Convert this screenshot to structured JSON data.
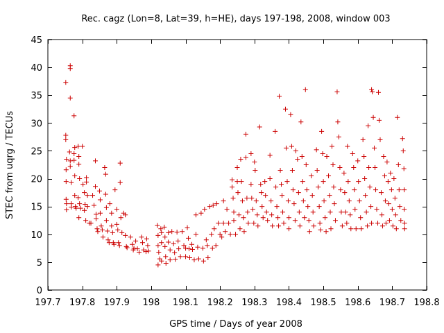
{
  "chart_data": {
    "type": "scatter",
    "title": "Rec. cagz (Lon=8, Lat=39, h=HE), days 197-198, 2008, window 003",
    "xlabel": "GPS time / Days of year 2008",
    "ylabel": "STEC from uqrg / TECUs",
    "xlim": [
      197.7,
      198.8
    ],
    "ylim": [
      0,
      45
    ],
    "x_ticks": [
      "197.7",
      "197.8",
      "197.9",
      "198",
      "198.1",
      "198.2",
      "198.3",
      "198.4",
      "198.5",
      "198.6",
      "198.7",
      "198.8"
    ],
    "y_ticks": [
      "0",
      "5",
      "10",
      "15",
      "20",
      "25",
      "30",
      "35",
      "40",
      "45"
    ],
    "grid": false,
    "marker": "plus",
    "color": "#cc0000",
    "points": [
      [
        197.752,
        37.3
      ],
      [
        197.752,
        27.8
      ],
      [
        197.752,
        27.0
      ],
      [
        197.754,
        23.5
      ],
      [
        197.753,
        21.6
      ],
      [
        197.753,
        19.5
      ],
      [
        197.753,
        16.3
      ],
      [
        197.754,
        15.5
      ],
      [
        197.754,
        14.4
      ],
      [
        197.765,
        40.3
      ],
      [
        197.765,
        39.8
      ],
      [
        197.765,
        34.5
      ],
      [
        197.763,
        24.8
      ],
      [
        197.765,
        23.2
      ],
      [
        197.765,
        22.2
      ],
      [
        197.768,
        19.3
      ],
      [
        197.768,
        15.5
      ],
      [
        197.768,
        14.9
      ],
      [
        197.776,
        31.3
      ],
      [
        197.778,
        25.6
      ],
      [
        197.776,
        24.5
      ],
      [
        197.776,
        23.3
      ],
      [
        197.778,
        20.5
      ],
      [
        197.778,
        17.0
      ],
      [
        197.78,
        15.0
      ],
      [
        197.782,
        14.7
      ],
      [
        197.788,
        25.8
      ],
      [
        197.79,
        24.0
      ],
      [
        197.79,
        22.6
      ],
      [
        197.792,
        20.0
      ],
      [
        197.788,
        16.6
      ],
      [
        197.792,
        15.5
      ],
      [
        197.795,
        14.7
      ],
      [
        197.79,
        13.0
      ],
      [
        197.8,
        25.8
      ],
      [
        197.802,
        19.0
      ],
      [
        197.806,
        17.5
      ],
      [
        197.808,
        15.4
      ],
      [
        197.806,
        14.3
      ],
      [
        197.81,
        12.5
      ],
      [
        197.812,
        20.2
      ],
      [
        197.812,
        19.4
      ],
      [
        197.815,
        17.0
      ],
      [
        197.815,
        15.0
      ],
      [
        197.82,
        12.0
      ],
      [
        197.825,
        12.0
      ],
      [
        197.83,
        17.0
      ],
      [
        197.834,
        15.2
      ],
      [
        197.838,
        23.2
      ],
      [
        197.838,
        18.6
      ],
      [
        197.84,
        13.6
      ],
      [
        197.84,
        12.8
      ],
      [
        197.843,
        11.0
      ],
      [
        197.845,
        10.5
      ],
      [
        197.85,
        17.8
      ],
      [
        197.852,
        16.2
      ],
      [
        197.852,
        13.8
      ],
      [
        197.855,
        11.5
      ],
      [
        197.858,
        10.8
      ],
      [
        197.86,
        9.5
      ],
      [
        197.865,
        22.0
      ],
      [
        197.868,
        20.8
      ],
      [
        197.868,
        17.2
      ],
      [
        197.87,
        14.8
      ],
      [
        197.87,
        12.5
      ],
      [
        197.873,
        10.6
      ],
      [
        197.875,
        9.0
      ],
      [
        197.878,
        8.5
      ],
      [
        197.88,
        15.5
      ],
      [
        197.885,
        13.8
      ],
      [
        197.885,
        11.5
      ],
      [
        197.888,
        10.3
      ],
      [
        197.89,
        8.5
      ],
      [
        197.892,
        8.2
      ],
      [
        197.895,
        18.0
      ],
      [
        197.9,
        14.5
      ],
      [
        197.9,
        11.8
      ],
      [
        197.903,
        10.8
      ],
      [
        197.905,
        8.5
      ],
      [
        197.908,
        8.0
      ],
      [
        197.91,
        22.8
      ],
      [
        197.91,
        19.3
      ],
      [
        197.912,
        13.0
      ],
      [
        197.915,
        10.3
      ],
      [
        197.92,
        13.8
      ],
      [
        197.925,
        13.5
      ],
      [
        197.925,
        9.8
      ],
      [
        197.928,
        7.8
      ],
      [
        197.93,
        7.6
      ],
      [
        197.94,
        9.5
      ],
      [
        197.945,
        8.2
      ],
      [
        197.948,
        7.2
      ],
      [
        197.95,
        7.5
      ],
      [
        197.955,
        8.8
      ],
      [
        197.96,
        7.4
      ],
      [
        197.965,
        6.8
      ],
      [
        197.972,
        9.5
      ],
      [
        197.975,
        8.5
      ],
      [
        197.978,
        7.2
      ],
      [
        197.985,
        6.9
      ],
      [
        197.987,
        9.2
      ],
      [
        197.99,
        8.0
      ],
      [
        197.992,
        7.0
      ],
      [
        198.018,
        11.6
      ],
      [
        198.02,
        9.8
      ],
      [
        198.02,
        8.0
      ],
      [
        198.022,
        6.8
      ],
      [
        198.025,
        5.6
      ],
      [
        198.02,
        4.5
      ],
      [
        198.028,
        11.0
      ],
      [
        198.03,
        10.3
      ],
      [
        198.03,
        8.5
      ],
      [
        198.03,
        5.2
      ],
      [
        198.038,
        11.3
      ],
      [
        198.04,
        9.5
      ],
      [
        198.04,
        7.8
      ],
      [
        198.042,
        6.0
      ],
      [
        198.043,
        4.8
      ],
      [
        198.05,
        10.3
      ],
      [
        198.05,
        8.6
      ],
      [
        198.055,
        7.2
      ],
      [
        198.055,
        5.4
      ],
      [
        198.06,
        10.5
      ],
      [
        198.065,
        8.3
      ],
      [
        198.068,
        6.7
      ],
      [
        198.07,
        5.5
      ],
      [
        198.075,
        10.4
      ],
      [
        198.078,
        8.8
      ],
      [
        198.08,
        7.4
      ],
      [
        198.085,
        6.0
      ],
      [
        198.09,
        10.5
      ],
      [
        198.095,
        8.0
      ],
      [
        198.1,
        7.5
      ],
      [
        198.1,
        6.0
      ],
      [
        198.105,
        11.2
      ],
      [
        198.108,
        9.3
      ],
      [
        198.11,
        7.4
      ],
      [
        198.112,
        5.8
      ],
      [
        198.118,
        8.2
      ],
      [
        198.12,
        7.3
      ],
      [
        198.125,
        5.4
      ],
      [
        198.13,
        13.5
      ],
      [
        198.13,
        10.0
      ],
      [
        198.135,
        7.7
      ],
      [
        198.138,
        5.6
      ],
      [
        198.145,
        13.8
      ],
      [
        198.15,
        7.5
      ],
      [
        198.152,
        5.2
      ],
      [
        198.155,
        14.5
      ],
      [
        198.16,
        9.0
      ],
      [
        198.163,
        8.0
      ],
      [
        198.165,
        5.8
      ],
      [
        198.17,
        15.0
      ],
      [
        198.175,
        10.0
      ],
      [
        198.178,
        7.5
      ],
      [
        198.18,
        15.2
      ],
      [
        198.183,
        11.0
      ],
      [
        198.188,
        8.0
      ],
      [
        198.19,
        15.5
      ],
      [
        198.195,
        12.0
      ],
      [
        198.2,
        10.0
      ],
      [
        198.205,
        9.5
      ],
      [
        198.21,
        16.0
      ],
      [
        198.21,
        12.0
      ],
      [
        198.215,
        10.5
      ],
      [
        198.22,
        14.5
      ],
      [
        198.225,
        12.0
      ],
      [
        198.23,
        10.0
      ],
      [
        198.235,
        19.8
      ],
      [
        198.235,
        18.5
      ],
      [
        198.238,
        16.5
      ],
      [
        198.24,
        14.0
      ],
      [
        198.24,
        12.5
      ],
      [
        198.245,
        10.0
      ],
      [
        198.25,
        22.0
      ],
      [
        198.25,
        19.5
      ],
      [
        198.252,
        17.5
      ],
      [
        198.255,
        13.5
      ],
      [
        198.258,
        11.0
      ],
      [
        198.26,
        23.5
      ],
      [
        198.262,
        19.5
      ],
      [
        198.265,
        16.0
      ],
      [
        198.268,
        13.0
      ],
      [
        198.27,
        10.5
      ],
      [
        198.275,
        28.0
      ],
      [
        198.275,
        23.8
      ],
      [
        198.278,
        16.5
      ],
      [
        198.28,
        14.0
      ],
      [
        198.282,
        12.0
      ],
      [
        198.29,
        24.5
      ],
      [
        198.29,
        19.0
      ],
      [
        198.292,
        16.5
      ],
      [
        198.295,
        14.5
      ],
      [
        198.298,
        12.0
      ],
      [
        198.3,
        23.0
      ],
      [
        198.302,
        21.5
      ],
      [
        198.305,
        16.0
      ],
      [
        198.308,
        13.5
      ],
      [
        198.31,
        11.5
      ],
      [
        198.315,
        29.3
      ],
      [
        198.318,
        19.0
      ],
      [
        198.32,
        17.5
      ],
      [
        198.322,
        15.0
      ],
      [
        198.325,
        13.0
      ],
      [
        198.33,
        19.5
      ],
      [
        198.332,
        17.0
      ],
      [
        198.335,
        14.0
      ],
      [
        198.338,
        12.5
      ],
      [
        198.345,
        24.2
      ],
      [
        198.345,
        20.0
      ],
      [
        198.348,
        16.0
      ],
      [
        198.35,
        13.5
      ],
      [
        198.352,
        11.5
      ],
      [
        198.36,
        28.5
      ],
      [
        198.362,
        18.5
      ],
      [
        198.365,
        15.0
      ],
      [
        198.368,
        13.0
      ],
      [
        198.37,
        11.5
      ],
      [
        198.372,
        34.8
      ],
      [
        198.375,
        21.5
      ],
      [
        198.378,
        19.0
      ],
      [
        198.38,
        17.0
      ],
      [
        198.382,
        14.0
      ],
      [
        198.385,
        12.0
      ],
      [
        198.39,
        32.5
      ],
      [
        198.392,
        25.5
      ],
      [
        198.395,
        19.5
      ],
      [
        198.398,
        16.0
      ],
      [
        198.4,
        13.0
      ],
      [
        198.4,
        11.0
      ],
      [
        198.405,
        31.5
      ],
      [
        198.408,
        25.8
      ],
      [
        198.41,
        21.5
      ],
      [
        198.412,
        18.0
      ],
      [
        198.415,
        15.5
      ],
      [
        198.418,
        12.5
      ],
      [
        198.42,
        25.0
      ],
      [
        198.425,
        23.5
      ],
      [
        198.428,
        17.5
      ],
      [
        198.43,
        14.0
      ],
      [
        198.432,
        11.5
      ],
      [
        198.435,
        30.2
      ],
      [
        198.438,
        24.0
      ],
      [
        198.44,
        19.5
      ],
      [
        198.442,
        16.0
      ],
      [
        198.445,
        13.0
      ],
      [
        198.448,
        36.0
      ],
      [
        198.45,
        22.5
      ],
      [
        198.452,
        18.0
      ],
      [
        198.455,
        15.0
      ],
      [
        198.458,
        12.5
      ],
      [
        198.46,
        10.5
      ],
      [
        198.465,
        20.5
      ],
      [
        198.468,
        17.0
      ],
      [
        198.47,
        14.0
      ],
      [
        198.472,
        11.5
      ],
      [
        198.48,
        25.2
      ],
      [
        198.482,
        21.5
      ],
      [
        198.485,
        18.5
      ],
      [
        198.488,
        15.0
      ],
      [
        198.49,
        12.0
      ],
      [
        198.492,
        10.8
      ],
      [
        198.495,
        28.5
      ],
      [
        198.498,
        24.5
      ],
      [
        198.5,
        19.5
      ],
      [
        198.502,
        16.0
      ],
      [
        198.505,
        13.0
      ],
      [
        198.508,
        10.5
      ],
      [
        198.51,
        24.0
      ],
      [
        198.515,
        20.5
      ],
      [
        198.518,
        17.0
      ],
      [
        198.52,
        14.0
      ],
      [
        198.522,
        11.0
      ],
      [
        198.525,
        25.8
      ],
      [
        198.528,
        22.5
      ],
      [
        198.53,
        18.5
      ],
      [
        198.532,
        15.5
      ],
      [
        198.535,
        12.5
      ],
      [
        198.54,
        35.6
      ],
      [
        198.542,
        30.2
      ],
      [
        198.545,
        27.5
      ],
      [
        198.548,
        22.0
      ],
      [
        198.55,
        18.0
      ],
      [
        198.552,
        14.0
      ],
      [
        198.555,
        11.5
      ],
      [
        198.56,
        21.0
      ],
      [
        198.562,
        17.5
      ],
      [
        198.565,
        14.0
      ],
      [
        198.568,
        12.0
      ],
      [
        198.57,
        25.8
      ],
      [
        198.572,
        19.5
      ],
      [
        198.575,
        16.0
      ],
      [
        198.578,
        13.5
      ],
      [
        198.58,
        11.0
      ],
      [
        198.585,
        24.5
      ],
      [
        198.588,
        22.0
      ],
      [
        198.59,
        18.0
      ],
      [
        198.592,
        14.5
      ],
      [
        198.595,
        11.0
      ],
      [
        198.6,
        23.2
      ],
      [
        198.602,
        19.5
      ],
      [
        198.605,
        16.0
      ],
      [
        198.608,
        13.0
      ],
      [
        198.61,
        11.0
      ],
      [
        198.615,
        27.0
      ],
      [
        198.618,
        24.0
      ],
      [
        198.62,
        20.0
      ],
      [
        198.622,
        17.0
      ],
      [
        198.625,
        14.0
      ],
      [
        198.628,
        11.5
      ],
      [
        198.63,
        29.5
      ],
      [
        198.632,
        22.0
      ],
      [
        198.635,
        18.5
      ],
      [
        198.638,
        15.0
      ],
      [
        198.64,
        12.0
      ],
      [
        198.64,
        36.0
      ],
      [
        198.642,
        35.6
      ],
      [
        198.645,
        31.0
      ],
      [
        198.648,
        25.5
      ],
      [
        198.65,
        22.0
      ],
      [
        198.652,
        18.0
      ],
      [
        198.655,
        14.5
      ],
      [
        198.658,
        12.0
      ],
      [
        198.66,
        35.5
      ],
      [
        198.662,
        30.5
      ],
      [
        198.665,
        27.0
      ],
      [
        198.668,
        17.5
      ],
      [
        198.67,
        13.5
      ],
      [
        198.672,
        11.5
      ],
      [
        198.675,
        24.0
      ],
      [
        198.678,
        20.5
      ],
      [
        198.68,
        16.0
      ],
      [
        198.682,
        12.0
      ],
      [
        198.685,
        23.0
      ],
      [
        198.688,
        19.5
      ],
      [
        198.69,
        15.5
      ],
      [
        198.692,
        12.5
      ],
      [
        198.695,
        21.0
      ],
      [
        198.698,
        18.0
      ],
      [
        198.7,
        14.5
      ],
      [
        198.702,
        11.5
      ],
      [
        198.705,
        20.0
      ],
      [
        198.708,
        16.5
      ],
      [
        198.71,
        13.5
      ],
      [
        198.712,
        11.0
      ],
      [
        198.715,
        31.0
      ],
      [
        198.718,
        22.5
      ],
      [
        198.72,
        18.0
      ],
      [
        198.722,
        15.0
      ],
      [
        198.725,
        12.5
      ],
      [
        198.73,
        27.2
      ],
      [
        198.732,
        25.0
      ],
      [
        198.734,
        21.8
      ],
      [
        198.735,
        18.0
      ],
      [
        198.735,
        14.5
      ],
      [
        198.736,
        12.0
      ],
      [
        198.736,
        11.0
      ]
    ]
  }
}
